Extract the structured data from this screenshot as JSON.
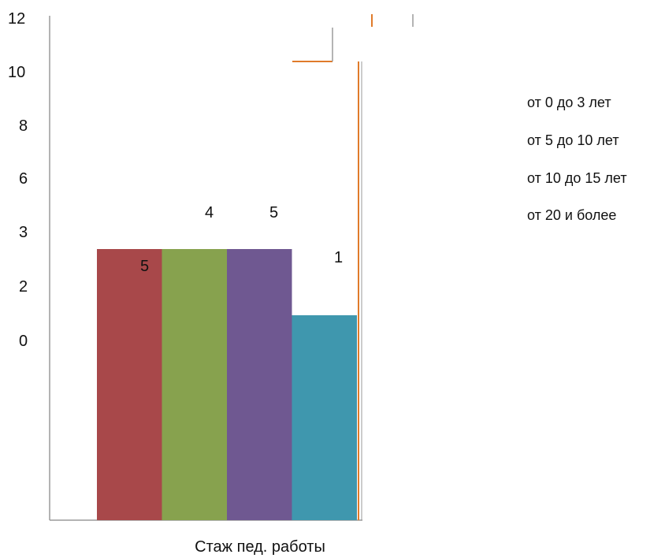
{
  "chart_data": {
    "type": "bar",
    "title": "",
    "xlabel": "Стаж пед. работы",
    "ylabel": "",
    "y_tick_labels": [
      "12",
      "10",
      "8",
      "6",
      "3",
      "2",
      "0"
    ],
    "series": [
      {
        "name": "от 0 до 3 лет",
        "value": 5,
        "value_label": "5",
        "color": "#a8484a"
      },
      {
        "name": "от 5 до 10 лет",
        "value": 4,
        "value_label": "4",
        "color": "#87a24e"
      },
      {
        "name": "от 10 до 15 лет",
        "value": 5,
        "value_label": "5",
        "color": "#6f5891"
      },
      {
        "name": "от 20 и более",
        "value": 1,
        "value_label": "1",
        "color": "#3f97ae"
      }
    ],
    "legend_position": "right",
    "grid": false,
    "colors": {
      "axis": "#999999",
      "accent_line": "#e07b2a"
    }
  }
}
